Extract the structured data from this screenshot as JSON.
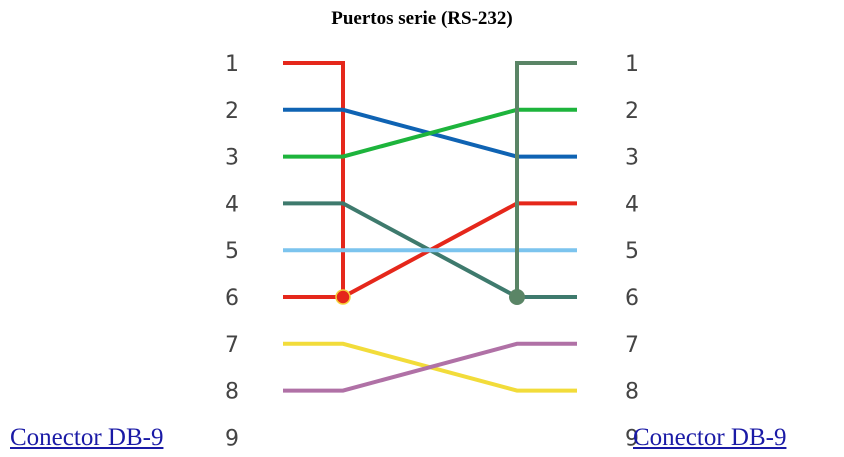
{
  "title": "Puertos serie (RS-232)",
  "pins": {
    "left": [
      "1",
      "2",
      "3",
      "4",
      "5",
      "6",
      "7",
      "8",
      "9"
    ],
    "right": [
      "1",
      "2",
      "3",
      "4",
      "5",
      "6",
      "7",
      "8",
      "9"
    ]
  },
  "links": {
    "left": "Conector DB-9",
    "right": "Conector DB-9"
  },
  "wires": [
    {
      "name": "wire-red",
      "color": "#e5271b",
      "from_pin": 1,
      "via_pin": 6,
      "to_pin": 4
    },
    {
      "name": "wire-blue",
      "color": "#0f63b3",
      "from_pin": 2,
      "to_pin": 3
    },
    {
      "name": "wire-green",
      "color": "#1db43c",
      "from_pin": 3,
      "to_pin": 2
    },
    {
      "name": "wire-darkgreen",
      "color": "#3e7a6d",
      "from_pin": 4,
      "to_pin": 6
    },
    {
      "name": "wire-lightblue",
      "color": "#7cc4ee",
      "from_pin": 5,
      "to_pin": 5
    },
    {
      "name": "wire-olive",
      "color": "#5a8566",
      "from_pin": 6,
      "via_pin": 1,
      "to_pin": 1
    },
    {
      "name": "wire-yellow",
      "color": "#f2dc3a",
      "from_pin": 7,
      "to_pin": 8
    },
    {
      "name": "wire-pink",
      "color": "#b071a6",
      "from_pin": 8,
      "to_pin": 7
    }
  ]
}
